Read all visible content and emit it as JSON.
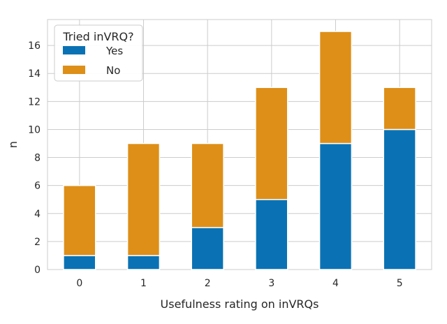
{
  "chart_data": {
    "type": "bar",
    "stacked": true,
    "categories": [
      "0",
      "1",
      "2",
      "3",
      "4",
      "5"
    ],
    "series": [
      {
        "name": "Yes",
        "color": "#0a72b4",
        "values": [
          1,
          1,
          3,
          5,
          9,
          10
        ]
      },
      {
        "name": "No",
        "color": "#de8f18",
        "values": [
          5,
          8,
          6,
          8,
          8,
          3
        ]
      }
    ],
    "xlabel": "Usefulness rating on inVRQs",
    "ylabel": "n",
    "ylim": [
      0,
      17.85
    ],
    "yticks": [
      0,
      2,
      4,
      6,
      8,
      10,
      12,
      14,
      16
    ],
    "grid": true,
    "legend": {
      "title": "Tried inVRQ?",
      "placement": "top-left"
    }
  }
}
